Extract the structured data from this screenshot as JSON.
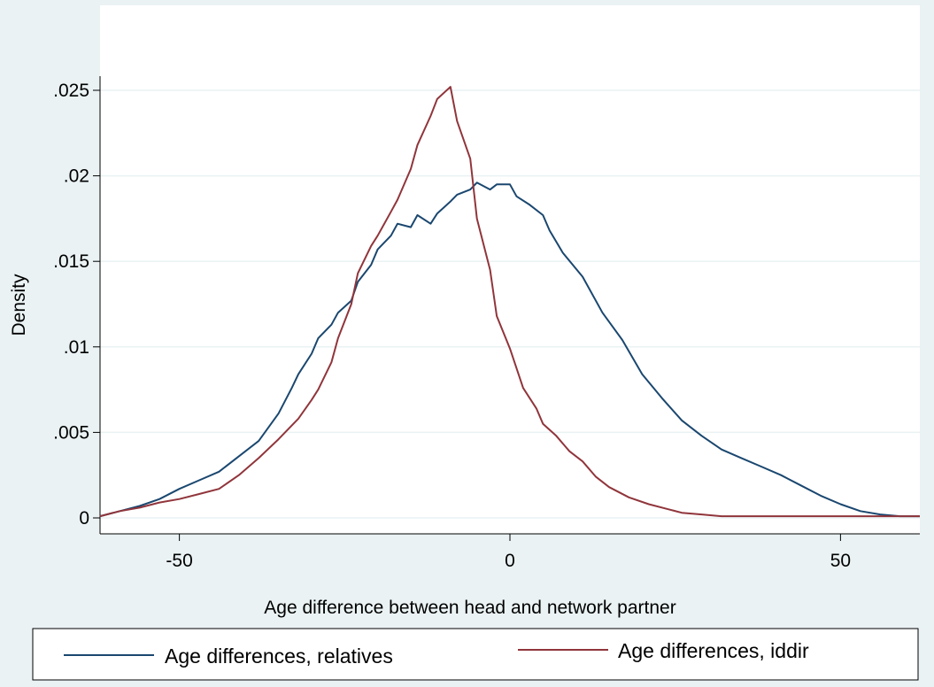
{
  "chart_data": {
    "type": "line",
    "title": "",
    "xlabel": "Age difference between head and network partner",
    "ylabel": "Density",
    "xlim": [
      -62,
      62
    ],
    "ylim": [
      0,
      0.026
    ],
    "xticks": [
      -50,
      0,
      50
    ],
    "xtick_labels": [
      "-50",
      "0",
      "50"
    ],
    "yticks": [
      0,
      0.005,
      0.01,
      0.015,
      0.02,
      0.025
    ],
    "ytick_labels": [
      "0",
      ".005",
      ".01",
      ".015",
      ".02",
      ".025"
    ],
    "grid": "horizontal",
    "legend_position": "bottom",
    "series": [
      {
        "name": "Age differences, relatives",
        "color": "#1a476f",
        "x": [
          -62,
          -59,
          -56,
          -53,
          -50,
          -47,
          -44,
          -41,
          -38,
          -35,
          -33,
          -32,
          -30,
          -29,
          -27,
          -26,
          -24,
          -23,
          -21,
          -20,
          -18,
          -17,
          -15,
          -14,
          -12,
          -11,
          -9,
          -8,
          -6,
          -5,
          -3,
          -2,
          0,
          1,
          3,
          5,
          6,
          8,
          11,
          14,
          17,
          20,
          23,
          26,
          29,
          32,
          35,
          38,
          41,
          44,
          47,
          50,
          53,
          56,
          59,
          62
        ],
        "y": [
          0.0001,
          0.0004,
          0.0007,
          0.0011,
          0.0017,
          0.0022,
          0.0027,
          0.0036,
          0.0045,
          0.0061,
          0.0076,
          0.0084,
          0.0096,
          0.0105,
          0.0113,
          0.012,
          0.0127,
          0.0138,
          0.0148,
          0.0157,
          0.0165,
          0.0172,
          0.017,
          0.0177,
          0.0172,
          0.0178,
          0.0185,
          0.0189,
          0.0192,
          0.0196,
          0.0192,
          0.0195,
          0.0195,
          0.0188,
          0.0183,
          0.0177,
          0.0168,
          0.0155,
          0.0141,
          0.012,
          0.0104,
          0.0084,
          0.007,
          0.0057,
          0.0048,
          0.004,
          0.0035,
          0.003,
          0.0025,
          0.0019,
          0.0013,
          0.0008,
          0.0004,
          0.0002,
          0.0001,
          0.0001
        ]
      },
      {
        "name": "Age differences, iddir",
        "color": "#90353b",
        "x": [
          -62,
          -59,
          -56,
          -53,
          -50,
          -47,
          -44,
          -41,
          -38,
          -35,
          -32,
          -30,
          -29,
          -27,
          -26,
          -24,
          -23,
          -21,
          -20,
          -18,
          -17,
          -15,
          -14,
          -12,
          -11,
          -9,
          -8,
          -6,
          -5,
          -3,
          -2,
          0,
          2,
          4,
          5,
          7,
          9,
          11,
          13,
          15,
          18,
          21,
          24,
          26,
          29,
          32,
          35,
          38,
          41,
          44,
          47,
          50,
          53,
          56,
          59,
          62
        ],
        "y": [
          0.0001,
          0.0004,
          0.0006,
          0.0009,
          0.0011,
          0.0014,
          0.0017,
          0.0025,
          0.0035,
          0.0046,
          0.0058,
          0.0069,
          0.0075,
          0.0091,
          0.0105,
          0.0125,
          0.0143,
          0.0159,
          0.0165,
          0.0179,
          0.0186,
          0.0204,
          0.0218,
          0.0235,
          0.0245,
          0.0252,
          0.0232,
          0.021,
          0.0175,
          0.0145,
          0.0118,
          0.0099,
          0.0076,
          0.0064,
          0.0055,
          0.0048,
          0.0039,
          0.0033,
          0.0024,
          0.0018,
          0.0012,
          0.0008,
          0.0005,
          0.0003,
          0.0002,
          0.0001,
          0.0001,
          0.0001,
          0.0001,
          0.0001,
          0.0001,
          0.0001,
          0.0001,
          0.0001,
          0.0001,
          0.0001
        ]
      }
    ]
  }
}
